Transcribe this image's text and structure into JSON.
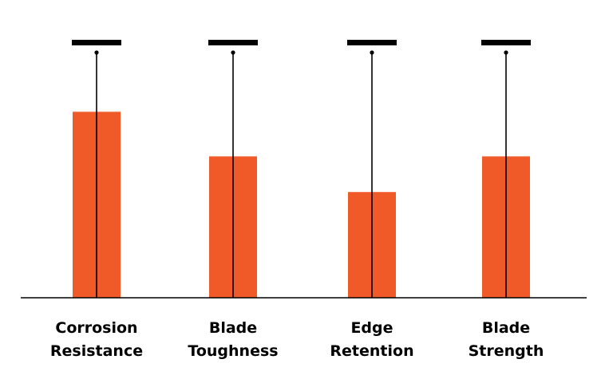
{
  "chart_data": {
    "type": "bar",
    "categories": [
      [
        "Corrosion",
        "Resistance"
      ],
      [
        "Blade",
        "Toughness"
      ],
      [
        "Edge",
        "Retention"
      ],
      [
        "Blade",
        "Strength"
      ]
    ],
    "values": [
      7.3,
      5.55,
      4.15,
      5.55
    ],
    "scale_max": 10,
    "ylim": [
      0,
      10
    ],
    "bar_color": "#f05a28",
    "line_color": "#000000",
    "grid": false,
    "legend": "none"
  }
}
